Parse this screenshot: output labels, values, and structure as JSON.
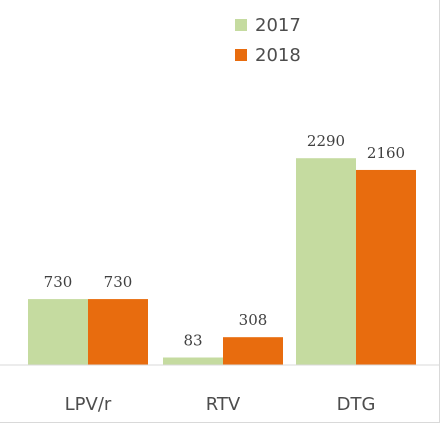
{
  "chart_data": {
    "type": "bar",
    "categories": [
      "LPV/r",
      "RTV",
      "DTG"
    ],
    "series": [
      {
        "name": "2017",
        "values": [
          730,
          83,
          2290
        ],
        "color": "#c5dba0"
      },
      {
        "name": "2018",
        "values": [
          730,
          308,
          2160
        ],
        "color": "#e86c0e"
      }
    ],
    "legend_position": "top-center",
    "data_labels": true,
    "grid": false,
    "ylim": [
      0,
      2500
    ]
  }
}
